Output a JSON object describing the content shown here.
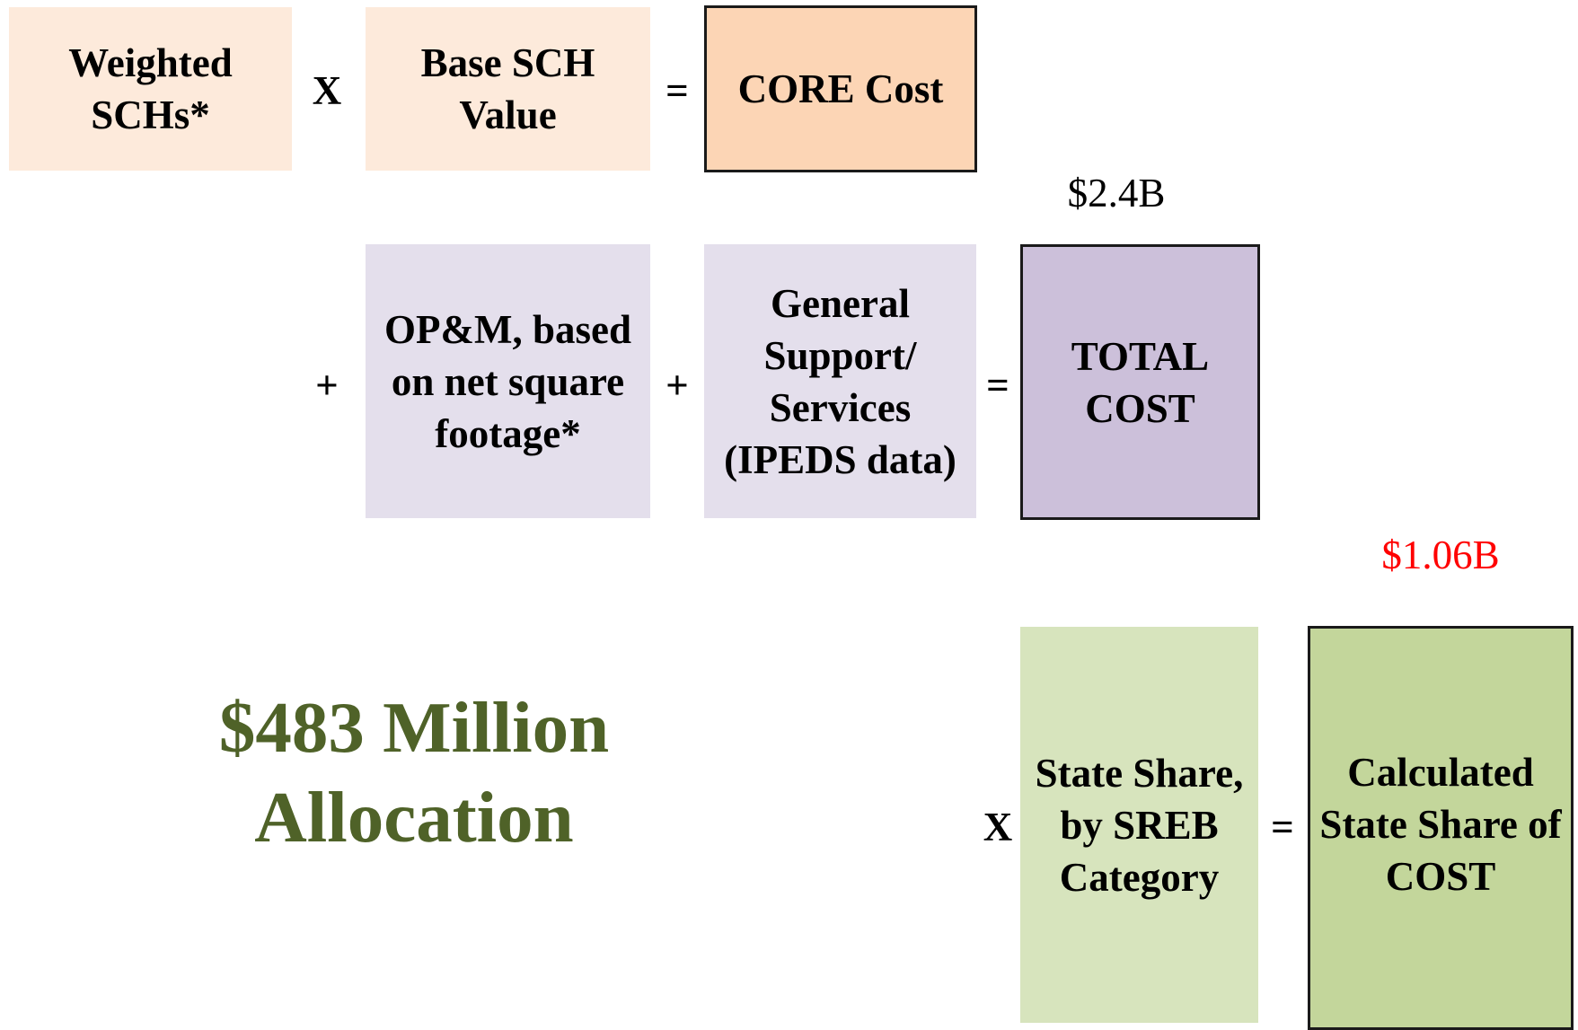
{
  "boxes": [
    {
      "lines": [
        "Weighted",
        "SCHs*"
      ]
    },
    {
      "lines": [
        "Base SCH",
        "Value"
      ]
    },
    {
      "lines": [
        "CORE Cost"
      ]
    },
    {
      "lines": [
        "OP&M, based",
        "on net square",
        "footage*"
      ]
    },
    {
      "lines": [
        "General",
        "Support/",
        "Services",
        "(IPEDS data)"
      ]
    },
    {
      "lines": [
        "TOTAL",
        "COST"
      ]
    },
    {
      "lines": [
        "State Share,",
        "by SREB",
        "Category"
      ]
    },
    {
      "lines": [
        "Calculated",
        "State Share of",
        "COST"
      ]
    }
  ],
  "operators": [
    "X",
    "=",
    "+",
    "+",
    "=",
    "X",
    "="
  ],
  "amounts": [
    "$2.4B",
    "$1.06B"
  ],
  "allocation": [
    "$483 Million",
    "Allocation"
  ]
}
